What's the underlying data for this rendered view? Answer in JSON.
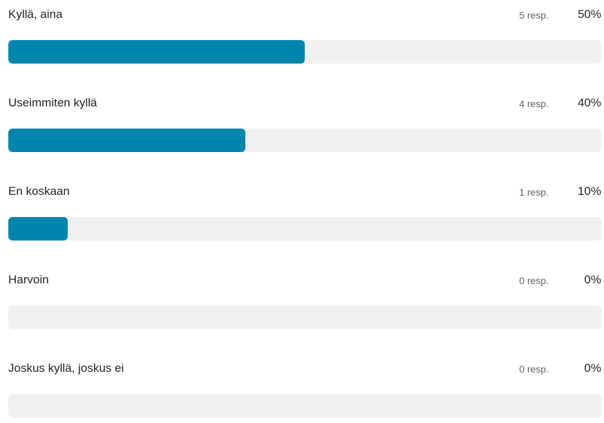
{
  "colors": {
    "bar_fill": "#0086AD",
    "bar_track": "#F0F0F0"
  },
  "options": [
    {
      "label": "Kyllä, aina",
      "responses": "5 resp.",
      "percent": "50%",
      "fraction": 0.5
    },
    {
      "label": "Useimmiten kyllä",
      "responses": "4 resp.",
      "percent": "40%",
      "fraction": 0.4
    },
    {
      "label": "En koskaan",
      "responses": "1 resp.",
      "percent": "10%",
      "fraction": 0.1
    },
    {
      "label": "Harvoin",
      "responses": "0 resp.",
      "percent": "0%",
      "fraction": 0
    },
    {
      "label": "Joskus kyllä, joskus ei",
      "responses": "0 resp.",
      "percent": "0%",
      "fraction": 0
    }
  ]
}
